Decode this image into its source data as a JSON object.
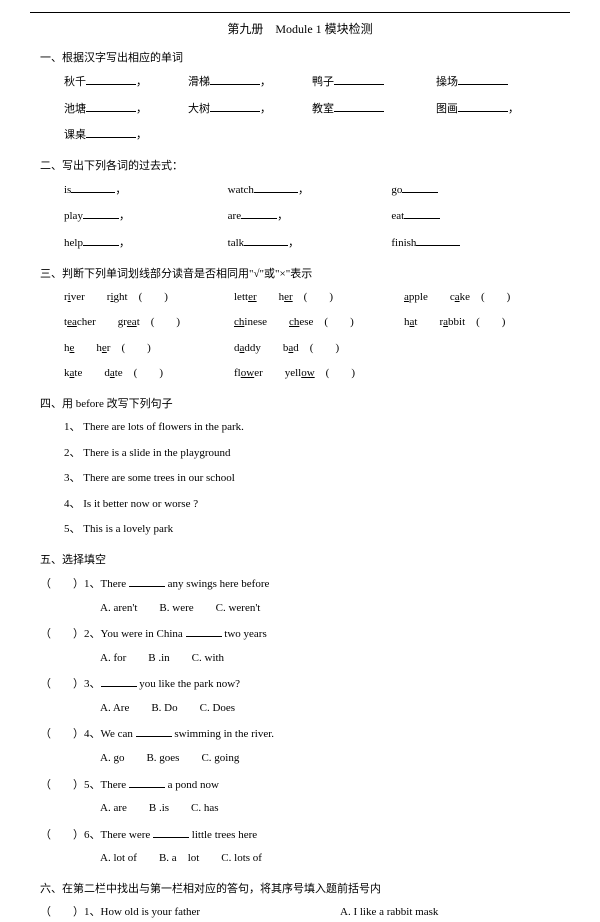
{
  "title": "第九册　Module 1  模块检测",
  "s1": {
    "head": "一、根据汉字写出相应的单词",
    "r1": [
      "秋千",
      "滑梯",
      "鸭子",
      "操场"
    ],
    "r2": [
      "池塘",
      "大树",
      "教室",
      "图画"
    ],
    "r3": [
      "课桌"
    ]
  },
  "s2": {
    "head": "二、写出下列各词的过去式：",
    "r1": [
      "is",
      "watch",
      "go"
    ],
    "r2": [
      "play",
      "are",
      "eat"
    ],
    "r3": [
      "help",
      "talk",
      "finish"
    ]
  },
  "s3": {
    "head": "三、判断下列单词划线部分读音是否相同用\"√\"或\"×\"表示",
    "rows": [
      [
        {
          "w1a": "r",
          "w1u": "i",
          "w1b": "ver",
          "w2a": "r",
          "w2u": "i",
          "w2b": "ght"
        },
        {
          "w1a": "lett",
          "w1u": "er",
          "w1b": "",
          "w2a": "h",
          "w2u": "er",
          "w2b": ""
        },
        {
          "w1a": "",
          "w1u": "a",
          "w1b": "pple",
          "w2a": "c",
          "w2u": "a",
          "w2b": "ke"
        }
      ],
      [
        {
          "w1a": "t",
          "w1u": "ea",
          "w1b": "cher",
          "w2a": "gr",
          "w2u": "ea",
          "w2b": "t"
        },
        {
          "w1a": "",
          "w1u": "ch",
          "w1b": "inese",
          "w2a": "",
          "w2u": "ch",
          "w2b": "ese"
        },
        {
          "w1a": "h",
          "w1u": "a",
          "w1b": "t",
          "w2a": "r",
          "w2u": "a",
          "w2b": "bbit"
        }
      ],
      [
        {
          "w1a": "h",
          "w1u": "e",
          "w1b": "",
          "w2a": "h",
          "w2u": "e",
          "w2b": "r"
        },
        {
          "w1a": "d",
          "w1u": "a",
          "w1b": "ddy",
          "w2a": "b",
          "w2u": "a",
          "w2b": "d"
        },
        null
      ],
      [
        {
          "w1a": "k",
          "w1u": "a",
          "w1b": "te",
          "w2a": "d",
          "w2u": "a",
          "w2b": "te"
        },
        {
          "w1a": "fl",
          "w1u": "ow",
          "w1b": "er",
          "w2a": "yell",
          "w2u": "ow",
          "w2b": ""
        },
        null
      ]
    ]
  },
  "s4": {
    "head": "四、用 before  改写下列句子",
    "items": [
      "1、 There are lots of flowers in the park.",
      "2、 There is a slide in the playground",
      "3、 There are some trees in our school",
      "4、 Is it better now or worse ?",
      "5、 This is a lovely park"
    ]
  },
  "s5": {
    "head": "五、选择填空",
    "q": [
      {
        "n": "1",
        "stem_a": "There ",
        "stem_b": " any swings here before",
        "opts": "A. aren't　　B. were　　C. weren't"
      },
      {
        "n": "2",
        "stem_a": "You were in China ",
        "stem_b": " two years",
        "opts": "A. for　　B .in　　C. with"
      },
      {
        "n": "3",
        "stem_a": "",
        "stem_b": " you like the park now?",
        "opts": "A. Are　　B. Do　　C. Does"
      },
      {
        "n": "4",
        "stem_a": "We can ",
        "stem_b": " swimming in the river.",
        "opts": "A. go　　B. goes　　C. going"
      },
      {
        "n": "5",
        "stem_a": "There ",
        "stem_b": " a pond now",
        "opts": "A. are　　B .is　　C. has"
      },
      {
        "n": "6",
        "stem_a": "There were ",
        "stem_b": " little trees here",
        "opts": "A. lot of　　B. a　lot　　C. lots of"
      }
    ]
  },
  "s6": {
    "head": "六、在第二栏中找出与第一栏相对应的答句，将其序号填入题前括号内",
    "left_n": "1",
    "left": "How old is your father",
    "right": "A. I like a rabbit mask"
  }
}
